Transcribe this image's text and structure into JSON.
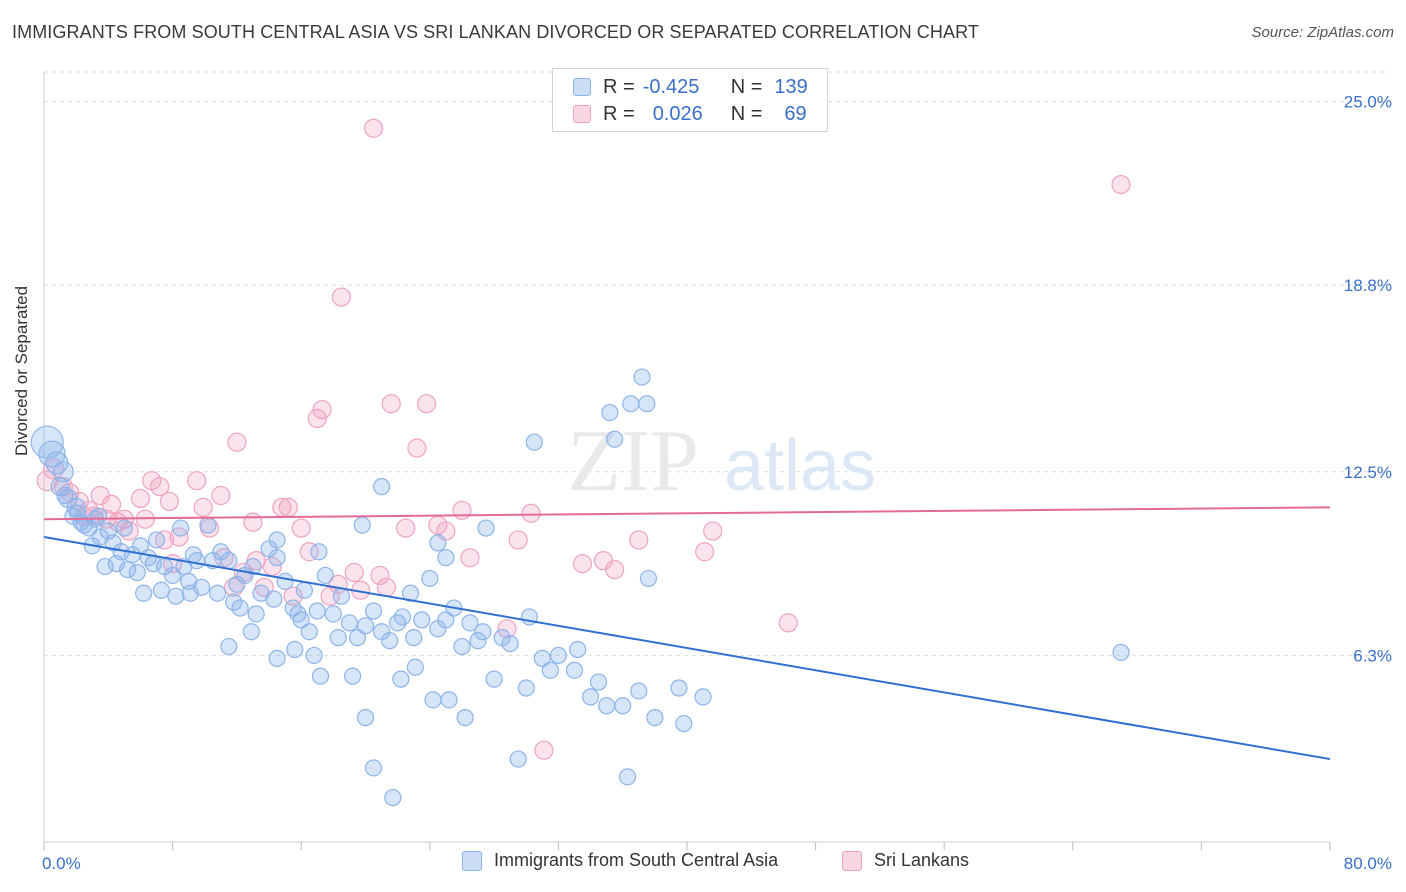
{
  "title": "IMMIGRANTS FROM SOUTH CENTRAL ASIA VS SRI LANKAN DIVORCED OR SEPARATED CORRELATION CHART",
  "source": "Source: ZipAtlas.com",
  "watermark": {
    "zip": "ZIP",
    "atlas": "atlas"
  },
  "colors": {
    "blue": "#8db4ea",
    "blue_fill": "rgba(141,180,234,0.35)",
    "blue_line": "#2f6fd0",
    "pink": "#f0a3bf",
    "pink_fill": "rgba(240,163,191,0.30)",
    "pink_line": "#e46a96",
    "tick_text": "#3a70c8",
    "grid": "#dddddd"
  },
  "legend": {
    "rows": [
      {
        "r_label": "R =",
        "r_value": "-0.425",
        "n_label": "N =",
        "n_value": "139"
      },
      {
        "r_label": "R =",
        "r_value": "0.026",
        "n_label": "N =",
        "n_value": "69"
      }
    ]
  },
  "chart_data": {
    "type": "scatter",
    "title": "IMMIGRANTS FROM SOUTH CENTRAL ASIA VS SRI LANKAN DIVORCED OR SEPARATED CORRELATION CHART",
    "xlabel": "",
    "ylabel": "Divorced or Separated",
    "x_unit": "%",
    "xlim": [
      0,
      80
    ],
    "ylim": [
      0,
      26
    ],
    "x_tick_labels": [
      "0.0%",
      "80.0%"
    ],
    "y_ticks": [
      6.3,
      12.5,
      18.8,
      25.0
    ],
    "y_tick_labels": [
      "6.3%",
      "12.5%",
      "18.8%",
      "25.0%"
    ],
    "grid": true,
    "legend_position": "bottom",
    "series": [
      {
        "name": "Immigrants from South Central Asia",
        "color": "blue",
        "trend": {
          "x": [
            0,
            80
          ],
          "y": [
            10.3,
            2.8
          ]
        },
        "points": [
          [
            0.2,
            13.5,
            16
          ],
          [
            0.5,
            13.1,
            13
          ],
          [
            0.8,
            12.8,
            11
          ],
          [
            1.2,
            12.5,
            10
          ],
          [
            1.0,
            12.0,
            9
          ],
          [
            1.5,
            11.6,
            9
          ],
          [
            2.0,
            11.3,
            9
          ],
          [
            1.8,
            11.0,
            8
          ],
          [
            2.3,
            10.8,
            8
          ],
          [
            2.8,
            10.6,
            8
          ],
          [
            3.2,
            10.9,
            8
          ],
          [
            3.5,
            10.3,
            8
          ],
          [
            3.0,
            10.0,
            8
          ],
          [
            4.0,
            10.5,
            8
          ],
          [
            4.3,
            10.1,
            8
          ],
          [
            4.8,
            9.8,
            8
          ],
          [
            5.5,
            9.7,
            8
          ],
          [
            6.0,
            10.0,
            8
          ],
          [
            6.5,
            9.6,
            8
          ],
          [
            7.0,
            10.2,
            8
          ],
          [
            2.5,
            10.7,
            8
          ],
          [
            4.5,
            9.4,
            8
          ],
          [
            5.2,
            9.2,
            8
          ],
          [
            6.8,
            9.4,
            8
          ],
          [
            7.5,
            9.3,
            8
          ],
          [
            8.0,
            9.0,
            8
          ],
          [
            8.5,
            10.6,
            8
          ],
          [
            9.0,
            8.8,
            8
          ],
          [
            9.5,
            9.5,
            8
          ],
          [
            10.2,
            10.7,
            8
          ],
          [
            10.5,
            9.5,
            8
          ],
          [
            11.0,
            9.8,
            8
          ],
          [
            11.5,
            9.5,
            8
          ],
          [
            12.0,
            8.7,
            8
          ],
          [
            12.5,
            9.0,
            8
          ],
          [
            13.0,
            9.3,
            8
          ],
          [
            13.5,
            8.4,
            8
          ],
          [
            14.0,
            9.9,
            8
          ],
          [
            14.5,
            9.6,
            8
          ],
          [
            15.0,
            8.8,
            8
          ],
          [
            7.3,
            8.5,
            8
          ],
          [
            8.2,
            8.3,
            8
          ],
          [
            9.8,
            8.6,
            8
          ],
          [
            10.8,
            8.4,
            8
          ],
          [
            11.8,
            8.1,
            8
          ],
          [
            12.2,
            7.9,
            8
          ],
          [
            13.2,
            7.7,
            8
          ],
          [
            14.3,
            8.2,
            8
          ],
          [
            15.5,
            7.9,
            8
          ],
          [
            16.0,
            7.5,
            8
          ],
          [
            16.5,
            7.1,
            8
          ],
          [
            17.0,
            7.8,
            8
          ],
          [
            17.5,
            9.0,
            8
          ],
          [
            18.0,
            7.7,
            8
          ],
          [
            18.5,
            8.3,
            8
          ],
          [
            19.0,
            7.4,
            8
          ],
          [
            19.5,
            6.9,
            8
          ],
          [
            20.0,
            7.3,
            8
          ],
          [
            20.5,
            7.8,
            8
          ],
          [
            21.0,
            7.1,
            8
          ],
          [
            21.5,
            6.8,
            8
          ],
          [
            22.0,
            7.4,
            8
          ],
          [
            22.8,
            8.4,
            8
          ],
          [
            23.0,
            6.9,
            8
          ],
          [
            23.5,
            7.5,
            8
          ],
          [
            24.0,
            8.9,
            8
          ],
          [
            24.5,
            7.2,
            8
          ],
          [
            25.0,
            7.5,
            8
          ],
          [
            25.5,
            7.9,
            8
          ],
          [
            26.0,
            6.6,
            8
          ],
          [
            27.0,
            6.8,
            8
          ],
          [
            28.0,
            5.5,
            8
          ],
          [
            29.0,
            6.7,
            8
          ],
          [
            30.0,
            5.2,
            8
          ],
          [
            31.0,
            6.2,
            8
          ],
          [
            31.5,
            5.8,
            8
          ],
          [
            32.0,
            6.3,
            8
          ],
          [
            33.0,
            5.8,
            8
          ],
          [
            34.0,
            4.9,
            8
          ],
          [
            35.0,
            4.6,
            8
          ],
          [
            36.0,
            4.6,
            8
          ],
          [
            37.0,
            5.1,
            8
          ],
          [
            38.0,
            4.2,
            8
          ],
          [
            41.0,
            4.9,
            8
          ],
          [
            12.9,
            7.1,
            8
          ],
          [
            15.6,
            6.5,
            8
          ],
          [
            17.2,
            5.6,
            8
          ],
          [
            19.2,
            5.6,
            8
          ],
          [
            20.0,
            4.2,
            8
          ],
          [
            22.2,
            5.5,
            8
          ],
          [
            23.1,
            5.9,
            8
          ],
          [
            24.2,
            4.8,
            8
          ],
          [
            25.2,
            4.8,
            8
          ],
          [
            26.2,
            4.2,
            8
          ],
          [
            14.5,
            10.2,
            8
          ],
          [
            17.1,
            9.8,
            8
          ],
          [
            19.8,
            10.7,
            8
          ],
          [
            21.0,
            12.0,
            8
          ],
          [
            24.5,
            10.1,
            8
          ],
          [
            25.0,
            9.6,
            8
          ],
          [
            27.5,
            10.6,
            8
          ],
          [
            30.5,
            13.5,
            8
          ],
          [
            35.2,
            14.5,
            8
          ],
          [
            35.5,
            13.6,
            8
          ],
          [
            36.5,
            14.8,
            8
          ],
          [
            37.2,
            15.7,
            8
          ],
          [
            37.5,
            14.8,
            8
          ],
          [
            37.6,
            8.9,
            8
          ],
          [
            20.5,
            2.5,
            8
          ],
          [
            29.5,
            2.8,
            8
          ],
          [
            36.3,
            2.2,
            8
          ],
          [
            21.7,
            1.5,
            8
          ],
          [
            14.5,
            6.2,
            8
          ],
          [
            11.5,
            6.6,
            8
          ],
          [
            18.3,
            6.9,
            8
          ],
          [
            16.2,
            8.5,
            8
          ],
          [
            15.8,
            7.7,
            8
          ],
          [
            22.3,
            7.6,
            8
          ],
          [
            26.5,
            7.4,
            8
          ],
          [
            27.3,
            7.1,
            8
          ],
          [
            28.5,
            6.9,
            8
          ],
          [
            30.2,
            7.6,
            8
          ],
          [
            33.2,
            6.5,
            8
          ],
          [
            34.5,
            5.4,
            8
          ],
          [
            39.5,
            5.2,
            8
          ],
          [
            39.8,
            4.0,
            8
          ],
          [
            67.0,
            6.4,
            8
          ],
          [
            9.3,
            9.7,
            8
          ],
          [
            9.1,
            8.4,
            8
          ],
          [
            5.8,
            9.1,
            8
          ],
          [
            6.2,
            8.4,
            8
          ],
          [
            3.8,
            9.3,
            8
          ],
          [
            2.1,
            11.1,
            8
          ],
          [
            1.3,
            11.7,
            8
          ],
          [
            3.4,
            11.0,
            8
          ],
          [
            5.0,
            10.6,
            8
          ],
          [
            8.7,
            9.3,
            8
          ],
          [
            16.8,
            6.3,
            8
          ]
        ]
      },
      {
        "name": "Sri Lankans",
        "color": "pink",
        "trend": {
          "x": [
            0,
            80
          ],
          "y": [
            10.9,
            11.3
          ]
        },
        "points": [
          [
            0.2,
            12.2,
            10
          ],
          [
            0.6,
            12.6,
            10
          ],
          [
            1.2,
            12.0,
            9
          ],
          [
            1.6,
            11.8,
            9
          ],
          [
            2.2,
            11.5,
            9
          ],
          [
            2.8,
            11.2,
            9
          ],
          [
            3.1,
            11.0,
            9
          ],
          [
            3.5,
            11.7,
            9
          ],
          [
            4.2,
            11.4,
            9
          ],
          [
            4.6,
            10.8,
            9
          ],
          [
            5.0,
            10.9,
            9
          ],
          [
            5.3,
            10.5,
            9
          ],
          [
            6.0,
            11.6,
            9
          ],
          [
            6.7,
            12.2,
            9
          ],
          [
            7.2,
            12.0,
            9
          ],
          [
            7.8,
            11.5,
            9
          ],
          [
            8.4,
            10.3,
            9
          ],
          [
            9.5,
            12.2,
            9
          ],
          [
            9.9,
            11.3,
            9
          ],
          [
            10.3,
            10.6,
            9
          ],
          [
            11.0,
            11.7,
            9
          ],
          [
            11.2,
            9.6,
            9
          ],
          [
            12.0,
            13.5,
            9
          ],
          [
            12.4,
            9.1,
            9
          ],
          [
            13.0,
            10.8,
            9
          ],
          [
            13.7,
            8.6,
            9
          ],
          [
            14.2,
            9.3,
            9
          ],
          [
            14.8,
            11.3,
            9
          ],
          [
            15.2,
            11.3,
            9
          ],
          [
            16.0,
            10.6,
            9
          ],
          [
            16.5,
            9.8,
            9
          ],
          [
            17.0,
            14.3,
            9
          ],
          [
            17.3,
            14.6,
            9
          ],
          [
            17.8,
            8.3,
            9
          ],
          [
            18.3,
            8.7,
            9
          ],
          [
            18.5,
            18.4,
            9
          ],
          [
            19.3,
            9.1,
            9
          ],
          [
            19.7,
            8.5,
            9
          ],
          [
            20.5,
            24.1,
            9
          ],
          [
            21.3,
            8.6,
            9
          ],
          [
            21.6,
            14.8,
            9
          ],
          [
            22.5,
            10.6,
            9
          ],
          [
            23.2,
            13.3,
            9
          ],
          [
            23.8,
            14.8,
            9
          ],
          [
            24.5,
            10.7,
            9
          ],
          [
            25.0,
            10.5,
            9
          ],
          [
            26.0,
            11.2,
            9
          ],
          [
            26.5,
            9.6,
            9
          ],
          [
            28.8,
            7.2,
            9
          ],
          [
            29.5,
            10.2,
            9
          ],
          [
            30.3,
            11.1,
            9
          ],
          [
            31.1,
            3.1,
            9
          ],
          [
            33.5,
            9.4,
            9
          ],
          [
            34.8,
            9.5,
            9
          ],
          [
            35.5,
            9.2,
            9
          ],
          [
            37.0,
            10.2,
            9
          ],
          [
            41.1,
            9.8,
            9
          ],
          [
            41.6,
            10.5,
            9
          ],
          [
            46.3,
            7.4,
            9
          ],
          [
            67.0,
            22.2,
            9
          ],
          [
            8.0,
            9.4,
            9
          ],
          [
            11.8,
            8.6,
            9
          ],
          [
            13.2,
            9.5,
            9
          ],
          [
            15.5,
            8.3,
            9
          ],
          [
            20.9,
            9.0,
            9
          ],
          [
            2.5,
            11.0,
            9
          ],
          [
            3.9,
            10.9,
            9
          ],
          [
            6.3,
            10.9,
            9
          ],
          [
            7.5,
            10.2,
            9
          ]
        ]
      }
    ]
  },
  "bottom_legend": [
    "Immigrants from South Central Asia",
    "Sri Lankans"
  ]
}
